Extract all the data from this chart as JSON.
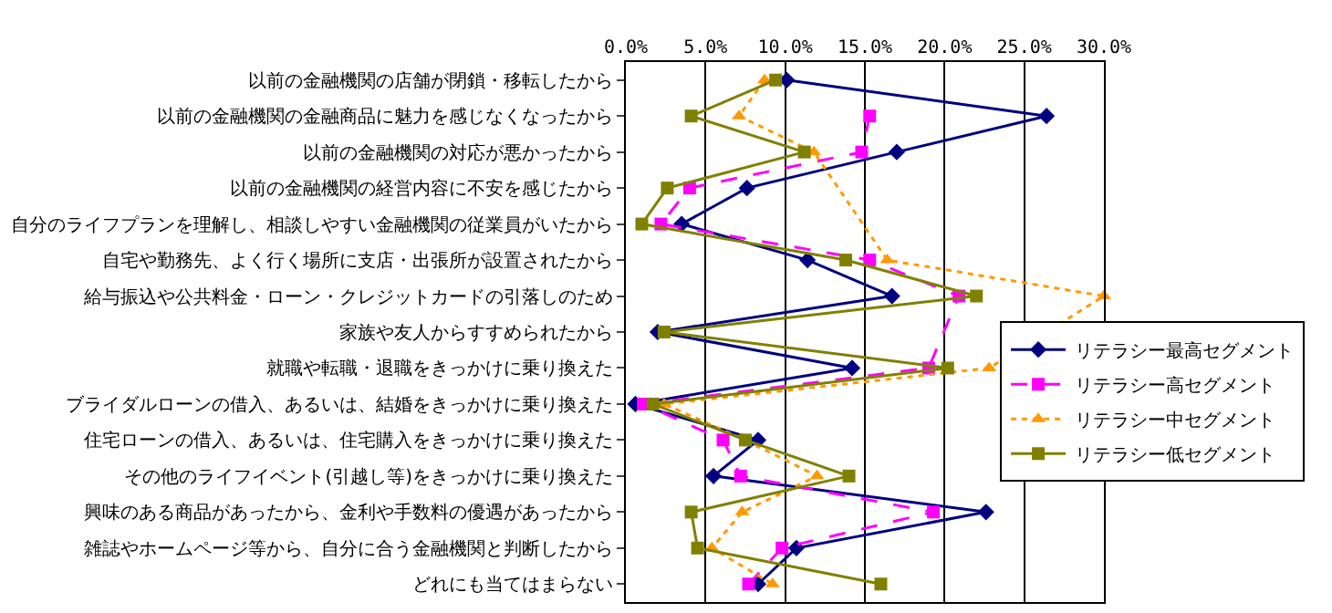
{
  "chart_data": {
    "type": "line",
    "orientation": "horizontal",
    "categories": [
      "以前の金融機関の店舗が閉鎖・移転したから",
      "以前の金融機関の金融商品に魅力を感じなくなったから",
      "以前の金融機関の対応が悪かったから",
      "以前の金融機関の経営内容に不安を感じたから",
      "自分のライフプランを理解し、相談しやすい金融機関の従業員がいたから",
      "自宅や勤務先、よく行く場所に支店・出張所が設置されたから",
      "給与振込や公共料金・ローン・クレジットカードの引落しのため",
      "家族や友人からすすめられたから",
      "就職や転職・退職をきっかけに乗り換えた",
      "ブライダルローンの借入、あるいは、結婚をきっかけに乗り換えた",
      "住宅ローンの借入、あるいは、住宅購入をきっかけに乗り換えた",
      "その他のライフイベント(引越し等)をきっかけに乗り換えた",
      "興味のある商品があったから、金利や手数料の優遇があったから",
      "雑誌やホームページ等から、自分に合う金融機関と判断したから",
      "どれにも当てはまらない"
    ],
    "series": [
      {
        "name": "リテラシー最高セグメント",
        "color": "#000080",
        "marker": "diamond",
        "line_style": "solid",
        "values": [
          10.1,
          26.4,
          17.0,
          7.6,
          3.5,
          11.4,
          16.7,
          2.0,
          14.2,
          0.6,
          8.3,
          5.5,
          22.6,
          10.7,
          8.3
        ]
      },
      {
        "name": "リテラシー高セグメント",
        "color": "#ff00ff",
        "marker": "square",
        "line_style": "dashed",
        "values": [
          null,
          15.3,
          14.8,
          4.0,
          2.2,
          15.3,
          20.9,
          null,
          19.0,
          1.1,
          6.1,
          7.2,
          19.3,
          9.8,
          7.7
        ]
      },
      {
        "name": "リテラシー中セグメント",
        "color": "#ff9900",
        "marker": "triangle",
        "line_style": "dotted",
        "values": [
          8.7,
          7.1,
          11.8,
          null,
          null,
          16.4,
          30.0,
          null,
          22.8,
          2.4,
          7.5,
          12.0,
          7.3,
          5.4,
          9.2
        ]
      },
      {
        "name": "リテラシー低セグメント",
        "color": "#808000",
        "marker": "square",
        "line_style": "solid",
        "values": [
          9.4,
          4.1,
          11.2,
          2.6,
          1.0,
          13.8,
          22.0,
          2.4,
          20.2,
          1.7,
          7.5,
          14.0,
          4.1,
          4.5,
          16.0
        ]
      }
    ],
    "xlim": [
      0,
      30
    ],
    "xticks": [
      {
        "value": 0,
        "label": "0.0%"
      },
      {
        "value": 5,
        "label": "5.0%"
      },
      {
        "value": 10,
        "label": "10.0%"
      },
      {
        "value": 15,
        "label": "15.0%"
      },
      {
        "value": 20,
        "label": "20.0%"
      },
      {
        "value": 25,
        "label": "25.0%"
      },
      {
        "value": 30,
        "label": "30.0%"
      }
    ],
    "grid": "x",
    "legend": "right"
  }
}
